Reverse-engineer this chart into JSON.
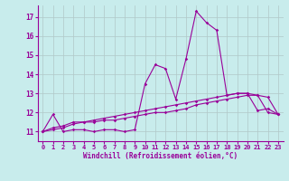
{
  "x": [
    0,
    1,
    2,
    3,
    4,
    5,
    6,
    7,
    8,
    9,
    10,
    11,
    12,
    13,
    14,
    15,
    16,
    17,
    18,
    19,
    20,
    21,
    22,
    23
  ],
  "line1": [
    11.0,
    11.9,
    11.0,
    11.1,
    11.1,
    11.0,
    11.1,
    11.1,
    11.0,
    11.1,
    13.5,
    14.5,
    14.3,
    12.7,
    14.8,
    17.3,
    16.7,
    16.3,
    12.9,
    13.0,
    13.0,
    12.1,
    12.2,
    11.9
  ],
  "line2": [
    11.0,
    11.2,
    11.3,
    11.5,
    11.5,
    11.5,
    11.6,
    11.6,
    11.7,
    11.8,
    11.9,
    12.0,
    12.0,
    12.1,
    12.2,
    12.4,
    12.5,
    12.6,
    12.7,
    12.8,
    12.9,
    12.9,
    12.0,
    11.9
  ],
  "line3": [
    11.0,
    11.1,
    11.2,
    11.4,
    11.5,
    11.6,
    11.7,
    11.8,
    11.9,
    12.0,
    12.1,
    12.2,
    12.3,
    12.4,
    12.5,
    12.6,
    12.7,
    12.8,
    12.9,
    13.0,
    13.0,
    12.9,
    12.8,
    11.9
  ],
  "color": "#990099",
  "bg_color": "#c8ecec",
  "grid_color": "#b0c8c8",
  "xlabel": "Windchill (Refroidissement éolien,°C)",
  "xlim": [
    -0.5,
    23.5
  ],
  "ylim": [
    10.5,
    17.6
  ],
  "yticks": [
    11,
    12,
    13,
    14,
    15,
    16,
    17
  ],
  "xticks": [
    0,
    1,
    2,
    3,
    4,
    5,
    6,
    7,
    8,
    9,
    10,
    11,
    12,
    13,
    14,
    15,
    16,
    17,
    18,
    19,
    20,
    21,
    22,
    23
  ],
  "marker": "D",
  "markersize": 1.8,
  "linewidth": 0.8,
  "tick_fontsize": 5.0,
  "xlabel_fontsize": 5.5
}
